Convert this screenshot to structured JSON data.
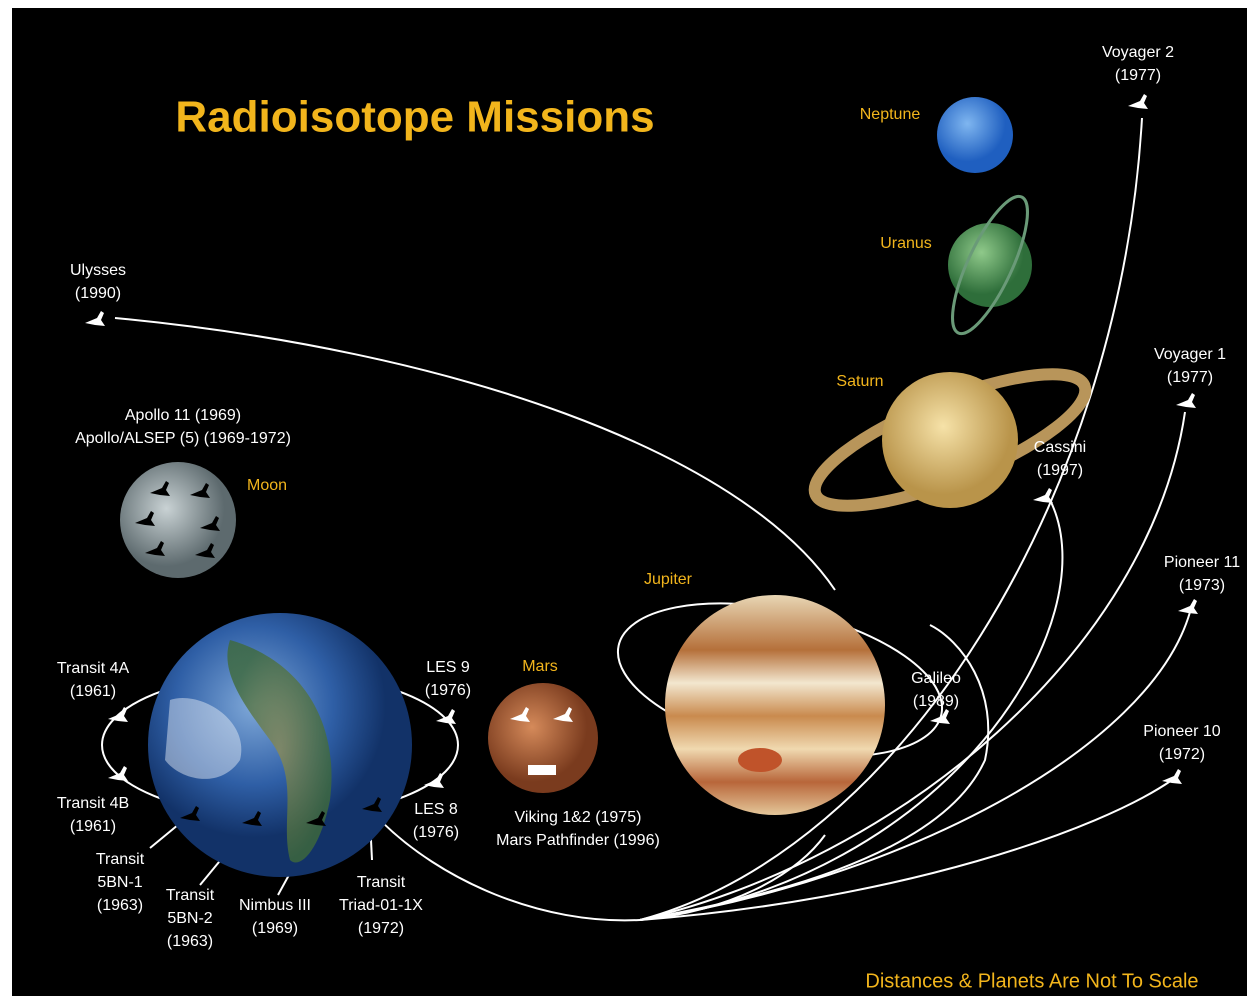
{
  "title": "Radioisotope Missions",
  "note": "Distances & Planets Are Not To Scale",
  "planets": [
    {
      "name": "Neptune"
    },
    {
      "name": "Uranus"
    },
    {
      "name": "Saturn"
    },
    {
      "name": "Jupiter"
    },
    {
      "name": "Mars"
    },
    {
      "name": "Moon"
    }
  ],
  "missions": [
    {
      "lines": [
        "Voyager 2",
        "(1977)"
      ]
    },
    {
      "lines": [
        "Voyager 1",
        "(1977)"
      ]
    },
    {
      "lines": [
        "Pioneer 11",
        "(1973)"
      ]
    },
    {
      "lines": [
        "Pioneer 10",
        "(1972)"
      ]
    },
    {
      "lines": [
        "Cassini",
        "(1997)"
      ]
    },
    {
      "lines": [
        "Galileo",
        "(1989)"
      ]
    },
    {
      "lines": [
        "Ulysses",
        "(1990)"
      ]
    },
    {
      "lines": [
        "Apollo 11 (1969)",
        "Apollo/ALSEP (5) (1969-1972)"
      ]
    },
    {
      "lines": [
        "Viking 1&2 (1975)",
        "Mars Pathfinder (1996)"
      ]
    },
    {
      "lines": [
        "Transit 4A",
        "(1961)"
      ]
    },
    {
      "lines": [
        "Transit 4B",
        "(1961)"
      ]
    },
    {
      "lines": [
        "Transit",
        "5BN-1",
        "(1963)"
      ]
    },
    {
      "lines": [
        "Transit",
        "5BN-2",
        "(1963)"
      ]
    },
    {
      "lines": [
        "Nimbus III",
        "(1969)"
      ]
    },
    {
      "lines": [
        "Transit",
        "Triad-01-1X",
        "(1972)"
      ]
    },
    {
      "lines": [
        "LES 9",
        "(1976)"
      ]
    },
    {
      "lines": [
        "LES 8",
        "(1976)"
      ]
    }
  ]
}
